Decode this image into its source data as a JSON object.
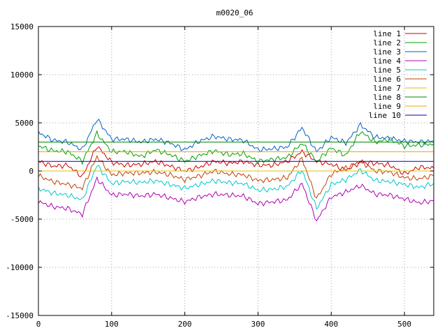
{
  "chart_data": {
    "type": "line",
    "title": "m0020_06",
    "xlabel": "",
    "ylabel": "",
    "xlim": [
      0,
      540
    ],
    "ylim": [
      -15000,
      15000
    ],
    "xticks": [
      0,
      100,
      200,
      300,
      400,
      500
    ],
    "yticks": [
      -15000,
      -10000,
      -5000,
      0,
      5000,
      10000,
      15000
    ],
    "grid": true,
    "legend_position": "top-right",
    "x_step": 20,
    "series": [
      {
        "name": "line 1",
        "color": "#cc0000",
        "kind": "wave",
        "values": [
          1000,
          500,
          600,
          -600,
          2600,
          900,
          600,
          700,
          1000,
          500,
          0,
          400,
          1000,
          800,
          1000,
          600,
          600,
          1000,
          2000,
          1000,
          700,
          100,
          900,
          800,
          600,
          -300,
          400,
          300
        ]
      },
      {
        "name": "line 2",
        "color": "#00a000",
        "kind": "wave",
        "values": [
          2600,
          2100,
          2000,
          1000,
          3900,
          2000,
          2000,
          1500,
          2200,
          1700,
          1000,
          1600,
          2100,
          1700,
          1800,
          1000,
          1200,
          1400,
          2900,
          1000,
          2400,
          1600,
          4100,
          3000,
          3300,
          2600,
          2700,
          2800
        ]
      },
      {
        "name": "line 3",
        "color": "#0060c0",
        "kind": "wave",
        "values": [
          4000,
          3200,
          3000,
          2200,
          5400,
          3300,
          3300,
          3000,
          3300,
          2900,
          2200,
          3100,
          3600,
          3300,
          3200,
          2200,
          2300,
          2500,
          4500,
          2000,
          3500,
          2900,
          4800,
          3500,
          3400,
          3100,
          3000,
          3100
        ]
      },
      {
        "name": "line 4",
        "color": "#b000b0",
        "kind": "wave",
        "values": [
          -3200,
          -3700,
          -3900,
          -4500,
          -800,
          -2500,
          -2400,
          -2600,
          -2400,
          -2800,
          -3200,
          -2700,
          -2400,
          -2500,
          -2600,
          -3400,
          -3200,
          -3000,
          -1300,
          -5200,
          -2700,
          -2200,
          -1500,
          -2400,
          -2500,
          -2900,
          -3300,
          -3100
        ]
      },
      {
        "name": "line 5",
        "color": "#00c8c8",
        "kind": "wave",
        "values": [
          -1800,
          -2300,
          -2500,
          -3000,
          600,
          -1300,
          -1100,
          -1200,
          -1000,
          -1400,
          -1800,
          -1400,
          -1000,
          -1200,
          -1300,
          -2000,
          -1900,
          -1600,
          100,
          -3900,
          -1400,
          -900,
          100,
          -1000,
          -1100,
          -1400,
          -1700,
          -1300
        ]
      },
      {
        "name": "line 6",
        "color": "#c04000",
        "kind": "wave",
        "values": [
          -500,
          -1100,
          -1400,
          -1800,
          1500,
          -400,
          -200,
          -200,
          -100,
          -400,
          -900,
          -500,
          0,
          -300,
          -400,
          -1000,
          -900,
          -700,
          1300,
          -2900,
          -300,
          300,
          1000,
          0,
          -100,
          -700,
          -800,
          -500
        ]
      },
      {
        "name": "line 7",
        "color": "#e0c000",
        "kind": "flat",
        "value": 0
      },
      {
        "name": "line 8",
        "color": "#008000",
        "kind": "flat",
        "value": 3000
      },
      {
        "name": "line 9",
        "color": "#f0a000",
        "kind": "flat",
        "value": 2000
      },
      {
        "name": "line 10",
        "color": "#0000c0",
        "kind": "flat",
        "value": 1000
      }
    ]
  }
}
